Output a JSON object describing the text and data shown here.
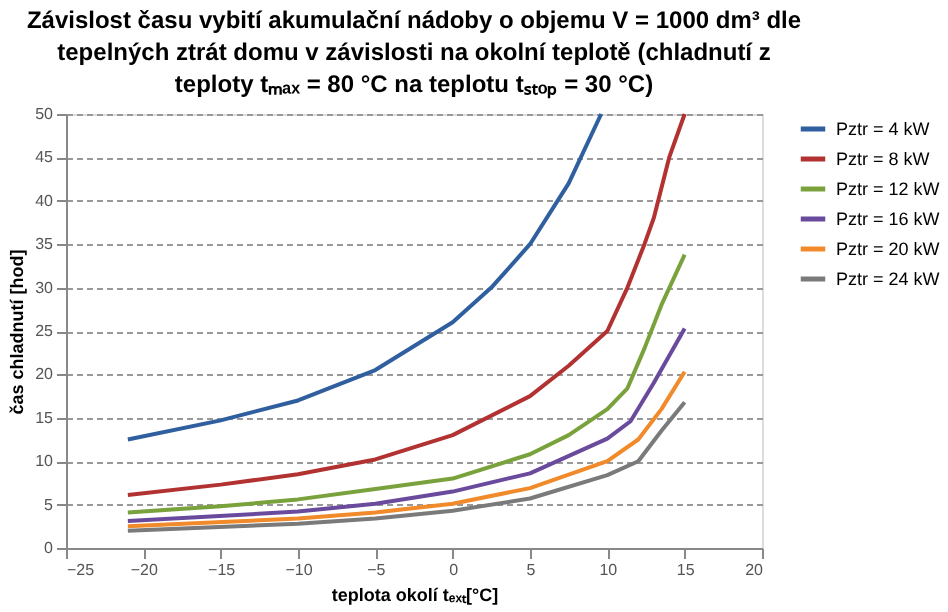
{
  "chart_data": {
    "type": "line",
    "title": "Závislost času vybití akumulační nádoby o objemu V = 1000 dm³ dle tepelných ztrát domu v závislosti na okolní teplotě (chladnutí z teploty tₘₐₓ = 80 °C na teplotu tₛₜₒₚ = 30 °C)",
    "xlabel": "teplota okolí tₑₓₜ[°C]",
    "ylabel": "čas chladnutí [hod]",
    "xlim": [
      -25,
      20
    ],
    "xticks": [
      -25,
      -20,
      -15,
      -10,
      -5,
      0,
      5,
      10,
      15,
      20
    ],
    "ylim": [
      0,
      50
    ],
    "yticks": [
      0,
      5,
      10,
      15,
      20,
      25,
      30,
      35,
      40,
      45,
      50
    ],
    "grid": "y",
    "legend": "right",
    "marker": "none",
    "line_style": "solid",
    "series": [
      {
        "name": "Pztr = 4 kW",
        "color": "#2f5f9e",
        "x": [
          -21,
          -15,
          -10,
          -5,
          0,
          2.5,
          5,
          7.5,
          9.6
        ],
        "values": [
          12.5,
          14.7,
          17,
          20.5,
          26,
          30,
          35,
          42,
          50
        ]
      },
      {
        "name": "Pztr = 8 kW",
        "color": "#b23232",
        "x": [
          -21,
          -15,
          -10,
          -5,
          0,
          5,
          7.5,
          10,
          11.3,
          12.4,
          13,
          14,
          15
        ],
        "values": [
          6.1,
          7.3,
          8.5,
          10.2,
          13,
          17.5,
          21,
          25,
          30,
          35,
          38,
          45,
          50
        ]
      },
      {
        "name": "Pztr = 12 kW",
        "color": "#7aa23c",
        "x": [
          -21,
          -15,
          -10,
          -5,
          0,
          5,
          7.5,
          10,
          11.3,
          12.4,
          13.5,
          15
        ],
        "values": [
          4.1,
          4.8,
          5.6,
          6.8,
          8,
          10.8,
          13,
          16,
          18.4,
          23,
          28,
          33.8
        ]
      },
      {
        "name": "Pztr = 16 kW",
        "color": "#6a4a9c",
        "x": [
          -21,
          -10,
          -5,
          0,
          5,
          10,
          11.5,
          13,
          15
        ],
        "values": [
          3.1,
          4.2,
          5.1,
          6.5,
          8.6,
          12.6,
          14.6,
          19,
          25.3
        ]
      },
      {
        "name": "Pztr = 20 kW",
        "color": "#f08a2a",
        "x": [
          -21,
          -10,
          -5,
          0,
          5,
          10,
          12,
          13.5,
          15
        ],
        "values": [
          2.5,
          3.4,
          4.1,
          5.1,
          6.9,
          10,
          12.5,
          16,
          20.3
        ]
      },
      {
        "name": "Pztr = 24 kW",
        "color": "#7a7a7a",
        "x": [
          -21,
          -10,
          -5,
          0,
          5,
          10,
          12,
          13.5,
          15
        ],
        "values": [
          2,
          2.8,
          3.4,
          4.3,
          5.7,
          8.4,
          10,
          13.5,
          16.8
        ]
      }
    ]
  }
}
